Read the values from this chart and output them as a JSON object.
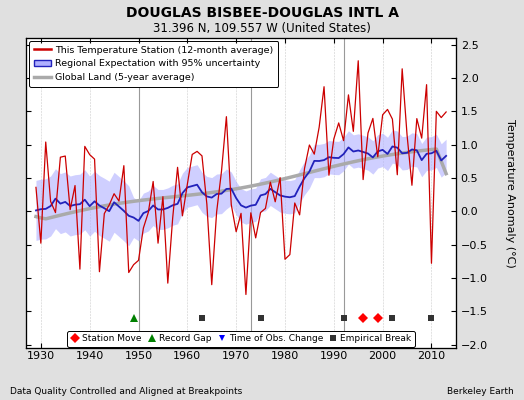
{
  "title": "DOUGLAS BISBEE-DOUGLAS INTL A",
  "subtitle": "31.396 N, 109.557 W (United States)",
  "ylabel": "Temperature Anomaly (°C)",
  "footer_left": "Data Quality Controlled and Aligned at Breakpoints",
  "footer_right": "Berkeley Earth",
  "xlim": [
    1927,
    2015
  ],
  "ylim": [
    -2.05,
    2.6
  ],
  "yticks": [
    -2,
    -1.5,
    -1,
    -0.5,
    0,
    0.5,
    1,
    1.5,
    2,
    2.5
  ],
  "xticks": [
    1930,
    1940,
    1950,
    1960,
    1970,
    1980,
    1990,
    2000,
    2010
  ],
  "bg_color": "#e0e0e0",
  "plot_bg_color": "#ffffff",
  "station_color": "#cc0000",
  "regional_color": "#2222bb",
  "regional_fill_color": "#b0b0ff",
  "global_color": "#aaaaaa",
  "vertical_line_color": "#999999",
  "vertical_lines": [
    1950,
    1973,
    1992
  ],
  "marker_events": [
    {
      "year": 1949,
      "type": "record_gap"
    },
    {
      "year": 1963,
      "type": "empirical_break"
    },
    {
      "year": 1975,
      "type": "empirical_break"
    },
    {
      "year": 1992,
      "type": "empirical_break"
    },
    {
      "year": 1996,
      "type": "station_move"
    },
    {
      "year": 1999,
      "type": "station_move"
    },
    {
      "year": 2002,
      "type": "empirical_break"
    },
    {
      "year": 2010,
      "type": "empirical_break"
    }
  ]
}
